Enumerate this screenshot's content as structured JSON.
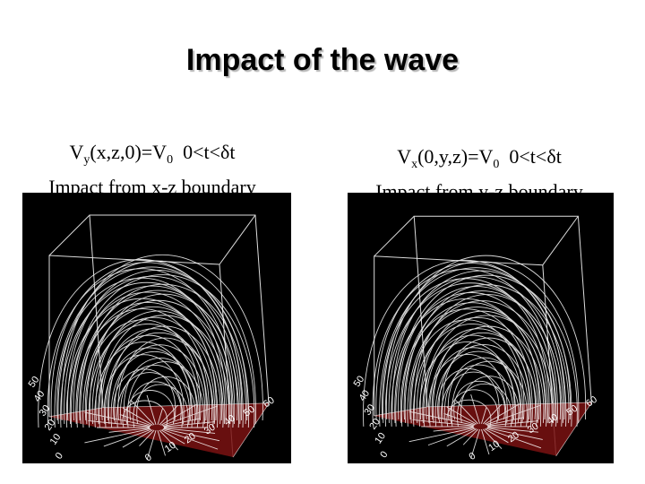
{
  "slide": {
    "title": "Impact of the wave"
  },
  "panels": [
    {
      "velocity": "V",
      "velocity_sub": "y",
      "args": "(x,z,0)=V",
      "v0_sub": "0",
      "interval": "0<t<",
      "delta": "δ",
      "t_end": "t",
      "subtitle": "Impact from x-z boundary"
    },
    {
      "velocity": "V",
      "velocity_sub": "x",
      "args": "(0,y,z)=V",
      "v0_sub": "0",
      "interval": "0<t<",
      "delta": "δ",
      "t_end": "t",
      "subtitle": "Impact from y-z boundary"
    }
  ],
  "axis_ticks": {
    "left_axis": [
      "50",
      "40",
      "30",
      "20",
      "10",
      "0"
    ],
    "front_axis": [
      "0",
      "10",
      "20",
      "30",
      "40",
      "50",
      "60"
    ]
  },
  "colors": {
    "background": "#ffffff",
    "plot_background": "#000000",
    "field_lines": "#ffffff",
    "base_plane": "#7a1212"
  }
}
